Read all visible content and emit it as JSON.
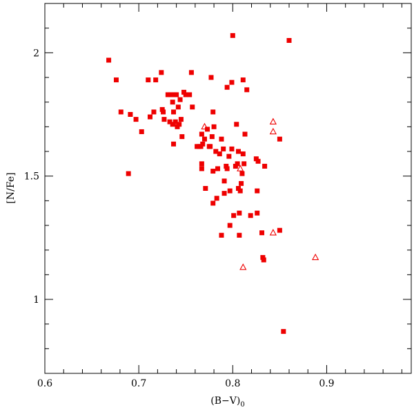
{
  "chart_data": {
    "type": "scatter",
    "title": "",
    "xlabel": "(B−V)",
    "xlabel_subscript": "0",
    "ylabel": "[N/Fe]",
    "xlim": [
      0.6,
      0.99
    ],
    "ylim": [
      0.7,
      2.2
    ],
    "xticks": [
      0.6,
      0.7,
      0.8,
      0.9
    ],
    "xtick_labels": [
      "0.6",
      "0.7",
      "0.8",
      "0.9"
    ],
    "yticks": [
      1,
      1.5,
      2
    ],
    "ytick_labels": [
      "1",
      "1.5",
      "2"
    ],
    "grid": false,
    "color": "#ee0000",
    "series": [
      {
        "marker": "filled-square",
        "points": [
          [
            0.668,
            1.97
          ],
          [
            0.676,
            1.89
          ],
          [
            0.681,
            1.76
          ],
          [
            0.689,
            1.51
          ],
          [
            0.691,
            1.75
          ],
          [
            0.697,
            1.73
          ],
          [
            0.703,
            1.68
          ],
          [
            0.71,
            1.89
          ],
          [
            0.712,
            1.74
          ],
          [
            0.716,
            1.76
          ],
          [
            0.718,
            1.89
          ],
          [
            0.724,
            1.92
          ],
          [
            0.725,
            1.77
          ],
          [
            0.726,
            1.76
          ],
          [
            0.727,
            1.73
          ],
          [
            0.731,
            1.83
          ],
          [
            0.733,
            1.72
          ],
          [
            0.734,
            1.83
          ],
          [
            0.736,
            1.8
          ],
          [
            0.736,
            1.71
          ],
          [
            0.737,
            1.76
          ],
          [
            0.737,
            1.63
          ],
          [
            0.738,
            1.83
          ],
          [
            0.739,
            1.72
          ],
          [
            0.74,
            1.83
          ],
          [
            0.741,
            1.7
          ],
          [
            0.742,
            1.78
          ],
          [
            0.743,
            1.71
          ],
          [
            0.744,
            1.81
          ],
          [
            0.745,
            1.73
          ],
          [
            0.746,
            1.66
          ],
          [
            0.748,
            1.84
          ],
          [
            0.75,
            1.83
          ],
          [
            0.754,
            1.83
          ],
          [
            0.756,
            1.92
          ],
          [
            0.757,
            1.78
          ],
          [
            0.762,
            1.62
          ],
          [
            0.764,
            1.62
          ],
          [
            0.766,
            1.62
          ],
          [
            0.767,
            1.67
          ],
          [
            0.767,
            1.55
          ],
          [
            0.767,
            1.53
          ],
          [
            0.768,
            1.63
          ],
          [
            0.77,
            1.65
          ],
          [
            0.771,
            1.45
          ],
          [
            0.773,
            1.69
          ],
          [
            0.775,
            1.62
          ],
          [
            0.776,
            1.62
          ],
          [
            0.777,
            1.9
          ],
          [
            0.778,
            1.66
          ],
          [
            0.779,
            1.76
          ],
          [
            0.779,
            1.52
          ],
          [
            0.779,
            1.39
          ],
          [
            0.78,
            1.7
          ],
          [
            0.782,
            1.6
          ],
          [
            0.783,
            1.41
          ],
          [
            0.784,
            1.53
          ],
          [
            0.786,
            1.59
          ],
          [
            0.788,
            1.26
          ],
          [
            0.788,
            1.65
          ],
          [
            0.79,
            1.61
          ],
          [
            0.791,
            1.48
          ],
          [
            0.791,
            1.43
          ],
          [
            0.793,
            1.54
          ],
          [
            0.794,
            1.86
          ],
          [
            0.794,
            1.53
          ],
          [
            0.796,
            1.58
          ],
          [
            0.797,
            1.44
          ],
          [
            0.797,
            1.3
          ],
          [
            0.799,
            1.88
          ],
          [
            0.799,
            1.61
          ],
          [
            0.8,
            2.07
          ],
          [
            0.801,
            1.34
          ],
          [
            0.803,
            1.54
          ],
          [
            0.804,
            1.71
          ],
          [
            0.805,
            1.55
          ],
          [
            0.806,
            1.6
          ],
          [
            0.806,
            1.45
          ],
          [
            0.807,
            1.35
          ],
          [
            0.807,
            1.26
          ],
          [
            0.808,
            1.44
          ],
          [
            0.809,
            1.47
          ],
          [
            0.81,
            1.51
          ],
          [
            0.811,
            1.59
          ],
          [
            0.811,
            1.89
          ],
          [
            0.812,
            1.55
          ],
          [
            0.813,
            1.67
          ],
          [
            0.815,
            1.85
          ],
          [
            0.819,
            1.34
          ],
          [
            0.825,
            1.57
          ],
          [
            0.826,
            1.35
          ],
          [
            0.826,
            1.44
          ],
          [
            0.827,
            1.56
          ],
          [
            0.831,
            1.27
          ],
          [
            0.832,
            1.17
          ],
          [
            0.833,
            1.16
          ],
          [
            0.834,
            1.54
          ],
          [
            0.85,
            1.65
          ],
          [
            0.85,
            1.28
          ],
          [
            0.854,
            0.87
          ],
          [
            0.86,
            2.05
          ]
        ]
      },
      {
        "marker": "open-triangle",
        "points": [
          [
            0.77,
            1.7
          ],
          [
            0.808,
            1.53
          ],
          [
            0.811,
            1.13
          ],
          [
            0.843,
            1.27
          ],
          [
            0.843,
            1.72
          ],
          [
            0.843,
            1.68
          ],
          [
            0.888,
            1.17
          ]
        ]
      }
    ]
  }
}
